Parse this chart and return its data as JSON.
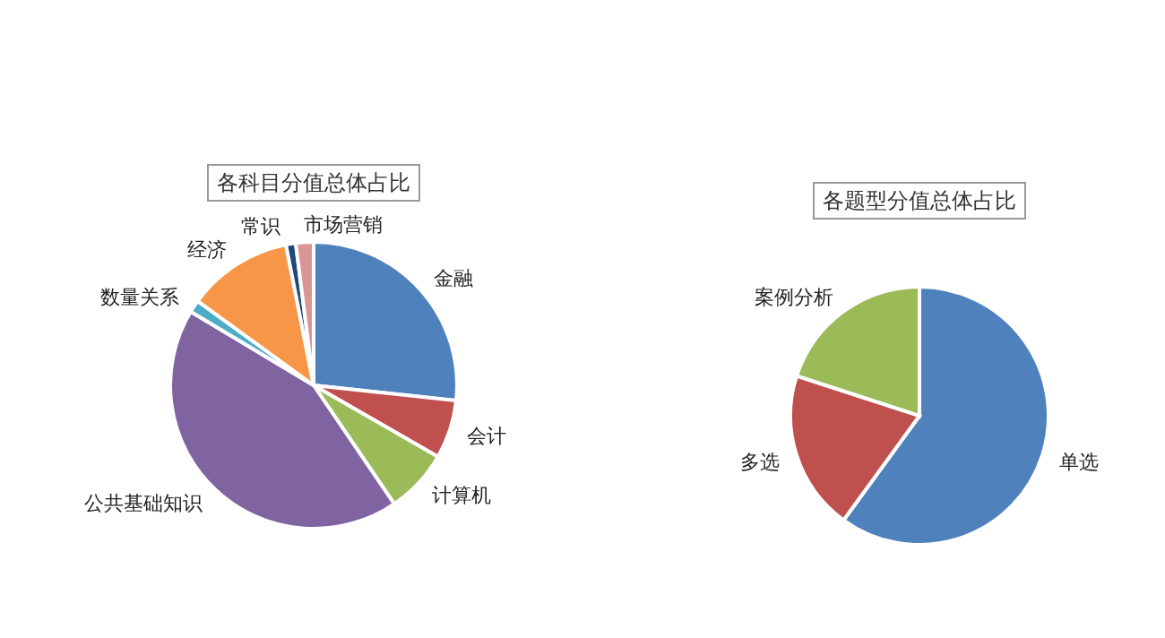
{
  "chart_data": [
    {
      "type": "pie",
      "title": "各科目分值总体占比",
      "categories": [
        "金融",
        "会计",
        "计算机",
        "公共基础知识",
        "数量关系",
        "经济",
        "常识",
        "市场营销"
      ],
      "values": [
        26.7,
        6.6,
        7.2,
        43.1,
        1.4,
        11.9,
        1.1,
        2.0
      ],
      "colors": [
        "#4f81bd",
        "#c0504d",
        "#9bbb59",
        "#8064a2",
        "#4bacc6",
        "#f79646",
        "#1f497d",
        "#d99694"
      ]
    },
    {
      "type": "pie",
      "title": "各题型分值总体占比",
      "categories": [
        "单选",
        "多选",
        "案例分析"
      ],
      "values": [
        60,
        20,
        20
      ],
      "colors": [
        "#4f81bd",
        "#c0504d",
        "#9bbb59"
      ]
    }
  ]
}
